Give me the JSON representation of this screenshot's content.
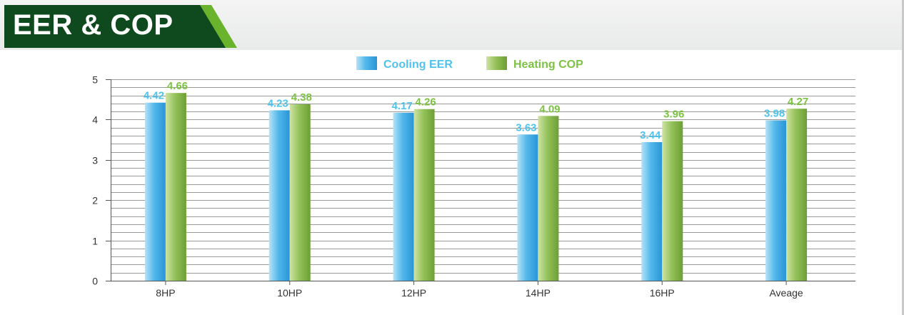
{
  "header": {
    "title": "EER & COP"
  },
  "colors": {
    "cooling": "#4fb6e8",
    "heating": "#8ebc4e",
    "cooling_label": "#4fc3ee",
    "heating_label": "#7cc243",
    "banner": "#0e4a1e",
    "banner_stripe": "#6ab42d"
  },
  "chart_data": {
    "type": "bar",
    "title": "",
    "xlabel": "",
    "ylabel": "",
    "ylim": [
      0,
      5
    ],
    "yticks": [
      0,
      1,
      2,
      3,
      4,
      5
    ],
    "categories": [
      "8HP",
      "10HP",
      "12HP",
      "14HP",
      "16HP",
      "Aveage"
    ],
    "series": [
      {
        "name": "Cooling EER",
        "values": [
          4.42,
          4.23,
          4.17,
          3.63,
          3.44,
          3.98
        ],
        "labels": [
          "4.42",
          "4.23",
          "4.17",
          "3.63",
          "3.44",
          "3.98"
        ]
      },
      {
        "name": "Heating COP",
        "values": [
          4.66,
          4.38,
          4.26,
          4.09,
          3.96,
          4.27
        ],
        "labels": [
          "4.66",
          "4.38",
          "4.26",
          "4.09",
          "3.96",
          "4.27"
        ]
      }
    ],
    "legend_position": "top-center",
    "grid": true
  }
}
